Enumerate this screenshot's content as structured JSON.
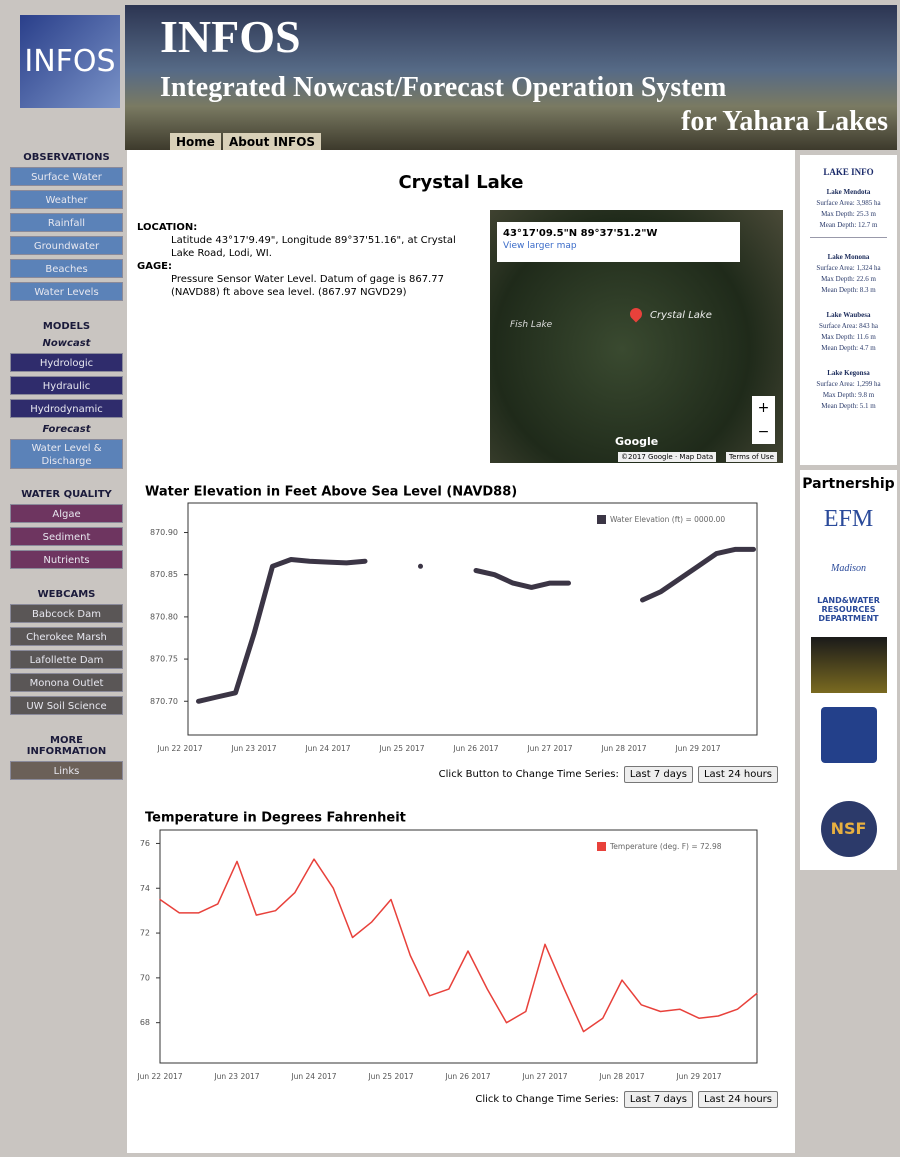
{
  "header": {
    "logo": "INFOS",
    "title": "INFOS",
    "subtitle": "Integrated Nowcast/Forecast Operation System",
    "subtitle2": "for Yahara Lakes",
    "nav": [
      "Home",
      "About INFOS"
    ]
  },
  "sidebar": [
    {
      "text": "OBSERVATIONS",
      "heading": true
    },
    {
      "text": "Surface Water",
      "color": "#5b82b8"
    },
    {
      "text": "Weather",
      "color": "#5b82b8"
    },
    {
      "text": "Rainfall",
      "color": "#5b82b8"
    },
    {
      "text": "Groundwater",
      "color": "#5b82b8"
    },
    {
      "text": "Beaches",
      "color": "#5b82b8"
    },
    {
      "text": "Water Levels",
      "color": "#5b82b8"
    },
    {
      "text": "MODELS",
      "heading": true
    },
    {
      "text": "Nowcast",
      "subheading": true
    },
    {
      "text": "Hydrologic",
      "color": "#2f2c6c"
    },
    {
      "text": "Hydraulic",
      "color": "#2f2c6c"
    },
    {
      "text": "Hydrodynamic",
      "color": "#2f2c6c"
    },
    {
      "text": "Forecast",
      "subheading": true
    },
    {
      "text": "Water Level & Discharge",
      "color": "#5b82b8"
    },
    {
      "text": "WATER QUALITY",
      "heading": true
    },
    {
      "text": "Algae",
      "color": "#6e3560"
    },
    {
      "text": "Sediment",
      "color": "#6e3560"
    },
    {
      "text": "Nutrients",
      "color": "#6e3560"
    },
    {
      "text": "WEBCAMS",
      "heading": true
    },
    {
      "text": "Babcock Dam",
      "color": "#5a5656"
    },
    {
      "text": "Cherokee Marsh",
      "color": "#5a5656"
    },
    {
      "text": "Lafollette Dam",
      "color": "#5a5656"
    },
    {
      "text": "Monona Outlet",
      "color": "#5a5656"
    },
    {
      "text": "UW Soil Science",
      "color": "#5a5656"
    },
    {
      "text": "MORE INFORMATION",
      "heading": true
    },
    {
      "text": "Links",
      "color": "#6b6058"
    }
  ],
  "main": {
    "title": "Crystal Lake",
    "location_label": "LOCATION:",
    "location": "Latitude  43°17'9.49\", Longitude  89°37'51.16\", at Crystal Lake Road, Lodi, WI.",
    "gage_label": "GAGE:",
    "gage": "Pressure Sensor Water Level. Datum of gage is 867.77 (NAVD88) ft above sea level. (867.97 NGVD29)",
    "map": {
      "coords": "43°17'09.5\"N 89°37'51.2\"W",
      "link": "View larger map",
      "lake": "Crystal Lake",
      "other_lake": "Fish Lake",
      "brand": "Google",
      "copyright": "©2017 Google · Map Data",
      "terms": "Terms of Use"
    },
    "buttons": [
      {
        "prompt": "Click Button to Change Time Series:",
        "options": [
          "Last 7 days",
          "Last 24 hours"
        ]
      },
      {
        "prompt": "Click to Change Time Series:",
        "options": [
          "Last 7 days",
          "Last 24 hours"
        ]
      }
    ]
  },
  "chart_data": [
    {
      "type": "line",
      "title": "Water Elevation in Feet Above Sea Level (NAVD88)",
      "xticks": [
        "Jun 22 2017",
        "Jun 23 2017",
        "Jun 24 2017",
        "Jun 25 2017",
        "Jun 26 2017",
        "Jun 27 2017",
        "Jun 28 2017",
        "Jun 29 2017"
      ],
      "ylim": [
        870.66,
        870.935
      ],
      "yticks": [
        {
          "value": 870.7,
          "label": "870.70"
        },
        {
          "value": 870.75,
          "label": "870.75"
        },
        {
          "value": 870.8,
          "label": "870.80"
        },
        {
          "value": 870.85,
          "label": "870.85"
        },
        {
          "value": 870.9,
          "label": "870.90"
        }
      ],
      "series": [
        {
          "name": "Water Elevation (ft) = 0000.00",
          "color": "#3b3545",
          "values": [
            null,
            870.7,
            870.705,
            870.71,
            870.78,
            870.86,
            870.868,
            870.866,
            870.865,
            870.864,
            870.866,
            null,
            null,
            870.86,
            null,
            null,
            870.855,
            870.85,
            870.84,
            870.835,
            870.84,
            870.84,
            null,
            null,
            null,
            870.82,
            870.83,
            870.845,
            870.86,
            870.875,
            870.88,
            870.88
          ]
        }
      ]
    },
    {
      "type": "line",
      "title": "Temperature in Degrees Fahrenheit",
      "xticks": [
        "Jun 22 2017",
        "Jun 23 2017",
        "Jun 24 2017",
        "Jun 25 2017",
        "Jun 26 2017",
        "Jun 27 2017",
        "Jun 28 2017",
        "Jun 29 2017"
      ],
      "ylim": [
        66.2,
        76.6
      ],
      "yticks": [
        68,
        70,
        72,
        74,
        76
      ],
      "series": [
        {
          "name": "Temperature (deg. F) = 72.98",
          "color": "#e8413b",
          "values": [
            73.5,
            72.9,
            72.9,
            73.3,
            75.2,
            72.8,
            73.0,
            73.8,
            75.3,
            74.0,
            71.8,
            72.5,
            73.5,
            71.0,
            69.2,
            69.5,
            71.2,
            69.5,
            68.0,
            68.5,
            71.5,
            69.5,
            67.6,
            68.2,
            69.9,
            68.8,
            68.5,
            68.6,
            68.2,
            68.3,
            68.6,
            69.3
          ]
        }
      ]
    }
  ],
  "lake_info": {
    "title": "LAKE INFO",
    "lakes": [
      {
        "name": "Lake Mendota",
        "lines": [
          "Surface Area: 3,985 ha",
          "Max Depth: 25.3 m",
          "Mean Depth: 12.7 m"
        ]
      },
      {
        "name": "Lake Monona",
        "lines": [
          "Surface Area: 1,324 ha",
          "Max Depth: 22.6 m",
          "Mean Depth: 8.3 m"
        ]
      },
      {
        "name": "Lake Waubesa",
        "lines": [
          "Surface Area: 843 ha",
          "Max Depth: 11.6 m",
          "Mean Depth: 4.7 m"
        ]
      },
      {
        "name": "Lake Kegonsa",
        "lines": [
          "Surface Area: 1,299 ha",
          "Max Depth: 9.8 m",
          "Mean Depth: 5.1 m"
        ]
      }
    ]
  },
  "partnership": {
    "title": "Partnership",
    "logos": [
      "EFM",
      "Madison",
      "LAND&WATER RESOURCES DEPARTMENT",
      "NSF"
    ]
  }
}
